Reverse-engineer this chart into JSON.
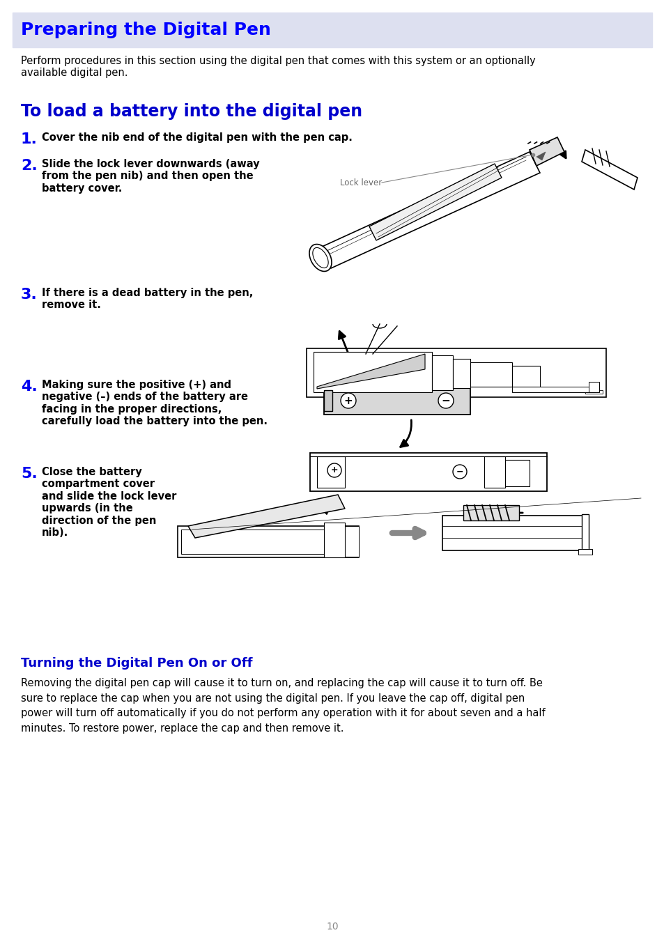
{
  "bg_color": "#ffffff",
  "header_bg": "#dde0f0",
  "header_text": "Preparing the Digital Pen",
  "header_color": "#0000ff",
  "header_fontsize": 18,
  "section_title": "To load a battery into the digital pen",
  "section_title_color": "#0000cc",
  "section_title_fontsize": 17,
  "body_text_color": "#000000",
  "body_fontsize": 10.5,
  "intro_text": "Perform procedures in this section using the digital pen that comes with this system or an optionally\navailable digital pen.",
  "steps": [
    {
      "num": "1.",
      "num_color": "#0000ee",
      "text": "Cover the nib end of the digital pen with the pen cap.",
      "bold": true
    },
    {
      "num": "2.",
      "num_color": "#0000ee",
      "text": "Slide the lock lever downwards (away\nfrom the pen nib) and then open the\nbattery cover.",
      "bold": true
    },
    {
      "num": "3.",
      "num_color": "#0000ee",
      "text": "If there is a dead battery in the pen,\nremove it.",
      "bold": true
    },
    {
      "num": "4.",
      "num_color": "#0000ee",
      "text": "Making sure the positive (+) and\nnegative (–) ends of the battery are\nfacing in the proper directions,\ncarefully load the battery into the pen.",
      "bold": true
    },
    {
      "num": "5.",
      "num_color": "#0000ee",
      "text": "Close the battery\ncompartment cover\nand slide the lock lever\nupwards (in the\ndirection of the pen\nnib).",
      "bold": true
    }
  ],
  "section2_title": "Turning the Digital Pen On or Off",
  "section2_title_color": "#0000cc",
  "section2_fontsize": 13,
  "section2_text": "Removing the digital pen cap will cause it to turn on, and replacing the cap will cause it to turn off. Be\nsure to replace the cap when you are not using the digital pen. If you leave the cap off, digital pen\npower will turn off automatically if you do not perform any operation with it for about seven and a half\nminutes. To restore power, replace the cap and then remove it.",
  "page_number": "10",
  "page_num_color": "#888888"
}
